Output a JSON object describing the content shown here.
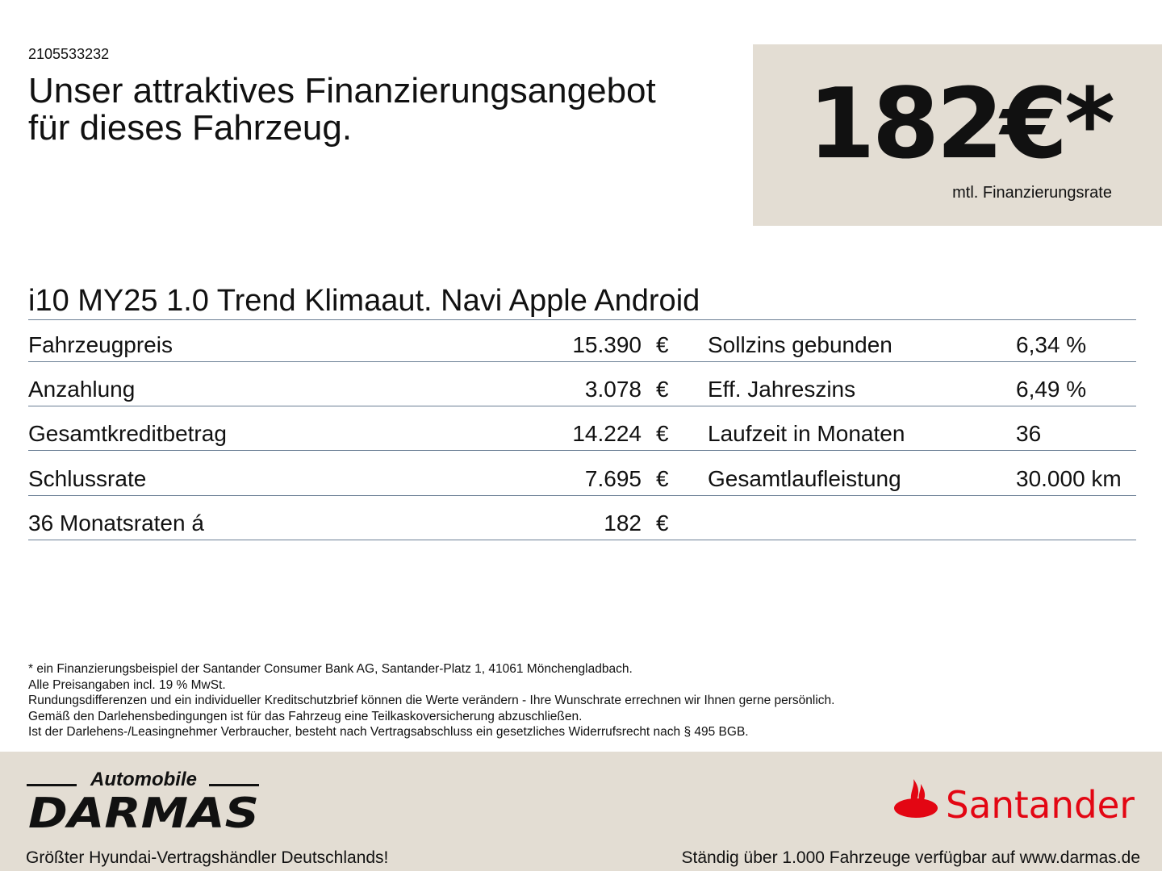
{
  "offer_id": "2105533232",
  "headline": [
    "Unser attraktives Finanzierungsangebot",
    "für dieses Fahrzeug."
  ],
  "price_box": {
    "price": "182€*",
    "label": "mtl. Finanzierungsrate"
  },
  "model": "i10 MY25 1.0 Trend Klimaaut. Navi Apple Android",
  "rows": [
    {
      "label": "Fahrzeugpreis",
      "value": "15.390",
      "currency": "€",
      "right_label": "Sollzins gebunden",
      "right_value": "6,34 %"
    },
    {
      "label": "Anzahlung",
      "value": "3.078",
      "currency": "€",
      "right_label": "Eff. Jahreszins",
      "right_value": "6,49 %"
    },
    {
      "label": "Gesamtkreditbetrag",
      "value": "14.224",
      "currency": "€",
      "right_label": "Laufzeit in Monaten",
      "right_value": "36"
    },
    {
      "label": "Schlussrate",
      "value": "7.695",
      "currency": "€",
      "right_label": "Gesamtlaufleistung",
      "right_value": "30.000 km"
    },
    {
      "label": "36 Monatsraten á",
      "value": "182",
      "currency": "€",
      "right_label": "",
      "right_value": ""
    }
  ],
  "notes": [
    "* ein Finanzierungsbeispiel der Santander Consumer Bank AG, Santander-Platz 1, 41061 Mönchengladbach.",
    "Alle Preisangaben incl. 19 % MwSt.",
    "Rundungsdifferenzen und ein individueller Kreditschutzbrief können die Werte verändern - Ihre Wunschrate errechnen wir Ihnen gerne persönlich.",
    "Gemäß den Darlehensbedingungen ist für das Fahrzeug eine Teilkaskoversicherung abzuschließen.",
    "Ist der Darlehens-/Leasingnehmer Verbraucher, besteht nach Vertragsabschluss ein gesetzliches Widerrufsrecht nach § 495 BGB."
  ],
  "footer": {
    "dealer_logo": {
      "top": "Automobile",
      "name": "DARMAS"
    },
    "claim_left": "Größter Hyundai-Vertragshändler Deutschlands!",
    "bank_logo": "Santander",
    "claim_right": "Ständig über 1.000 Fahrzeuge verfügbar auf www.darmas.de"
  },
  "colors": {
    "beige": "#e3ddd3",
    "rule": "#6b7f95",
    "santander_red": "#e30613"
  }
}
